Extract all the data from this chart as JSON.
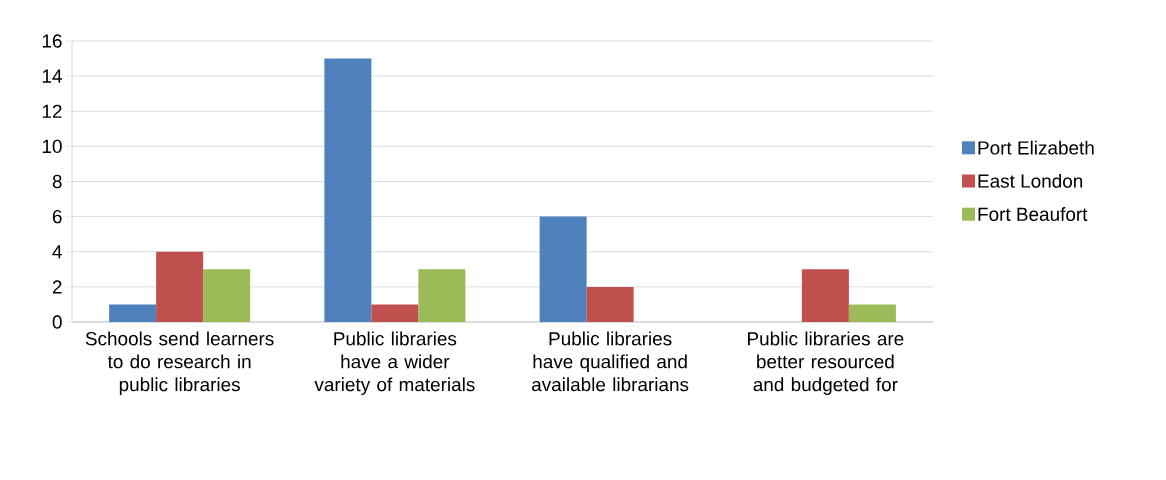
{
  "chart_data": {
    "type": "bar",
    "categories": [
      "Schools send learners to do research in public libraries",
      "Public libraries have a wider variety of materials",
      "Public libraries have qualified and available librarians",
      "Public libraries are better resourced and budgeted for"
    ],
    "series": [
      {
        "name": "Port Elizabeth",
        "color": "#4f81bd",
        "values": [
          1,
          15,
          6,
          0
        ]
      },
      {
        "name": "East London",
        "color": "#c0504d",
        "values": [
          4,
          1,
          2,
          3
        ]
      },
      {
        "name": "Fort Beaufort",
        "color": "#9bbb59",
        "values": [
          3,
          3,
          0,
          1
        ]
      }
    ],
    "ylim": [
      0,
      16
    ],
    "yticks": [
      0,
      2,
      4,
      6,
      8,
      10,
      12,
      14,
      16
    ],
    "grid": "y",
    "legend": "right"
  }
}
